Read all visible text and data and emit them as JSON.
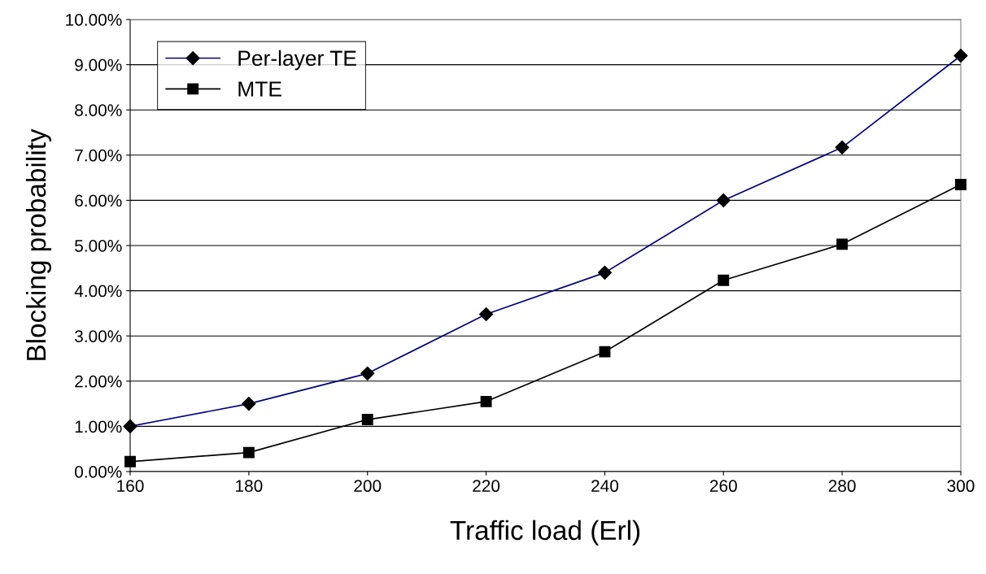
{
  "chart_data": {
    "type": "line",
    "xlabel": "Traffic load (Erl)",
    "ylabel": "Blocking probability",
    "x": [
      160,
      180,
      200,
      220,
      240,
      260,
      280,
      300
    ],
    "series": [
      {
        "name": "Per-layer TE",
        "color": "#000080",
        "marker": "diamond",
        "values": [
          1.0,
          1.5,
          2.17,
          3.48,
          4.4,
          6.0,
          7.17,
          9.2
        ]
      },
      {
        "name": "MTE",
        "color": "#000000",
        "marker": "square",
        "values": [
          0.22,
          0.42,
          1.15,
          1.55,
          2.65,
          4.23,
          5.03,
          6.35
        ]
      }
    ],
    "xlim": [
      160,
      300
    ],
    "xticks": [
      160,
      180,
      200,
      220,
      240,
      260,
      280,
      300
    ],
    "ylim": [
      0,
      10
    ],
    "yticks": [
      {
        "value": 0,
        "label": "0.00%"
      },
      {
        "value": 1,
        "label": "1.00%"
      },
      {
        "value": 2,
        "label": "2.00%"
      },
      {
        "value": 3,
        "label": "3.00%"
      },
      {
        "value": 4,
        "label": "4.00%"
      },
      {
        "value": 5,
        "label": "5.00%"
      },
      {
        "value": 6,
        "label": "6.00%"
      },
      {
        "value": 7,
        "label": "7.00%"
      },
      {
        "value": 8,
        "label": "8.00%"
      },
      {
        "value": 9,
        "label": "9.00%"
      },
      {
        "value": 10,
        "label": "10.00%"
      }
    ],
    "grid": "y",
    "legend": "top left",
    "line_style": "solid"
  }
}
